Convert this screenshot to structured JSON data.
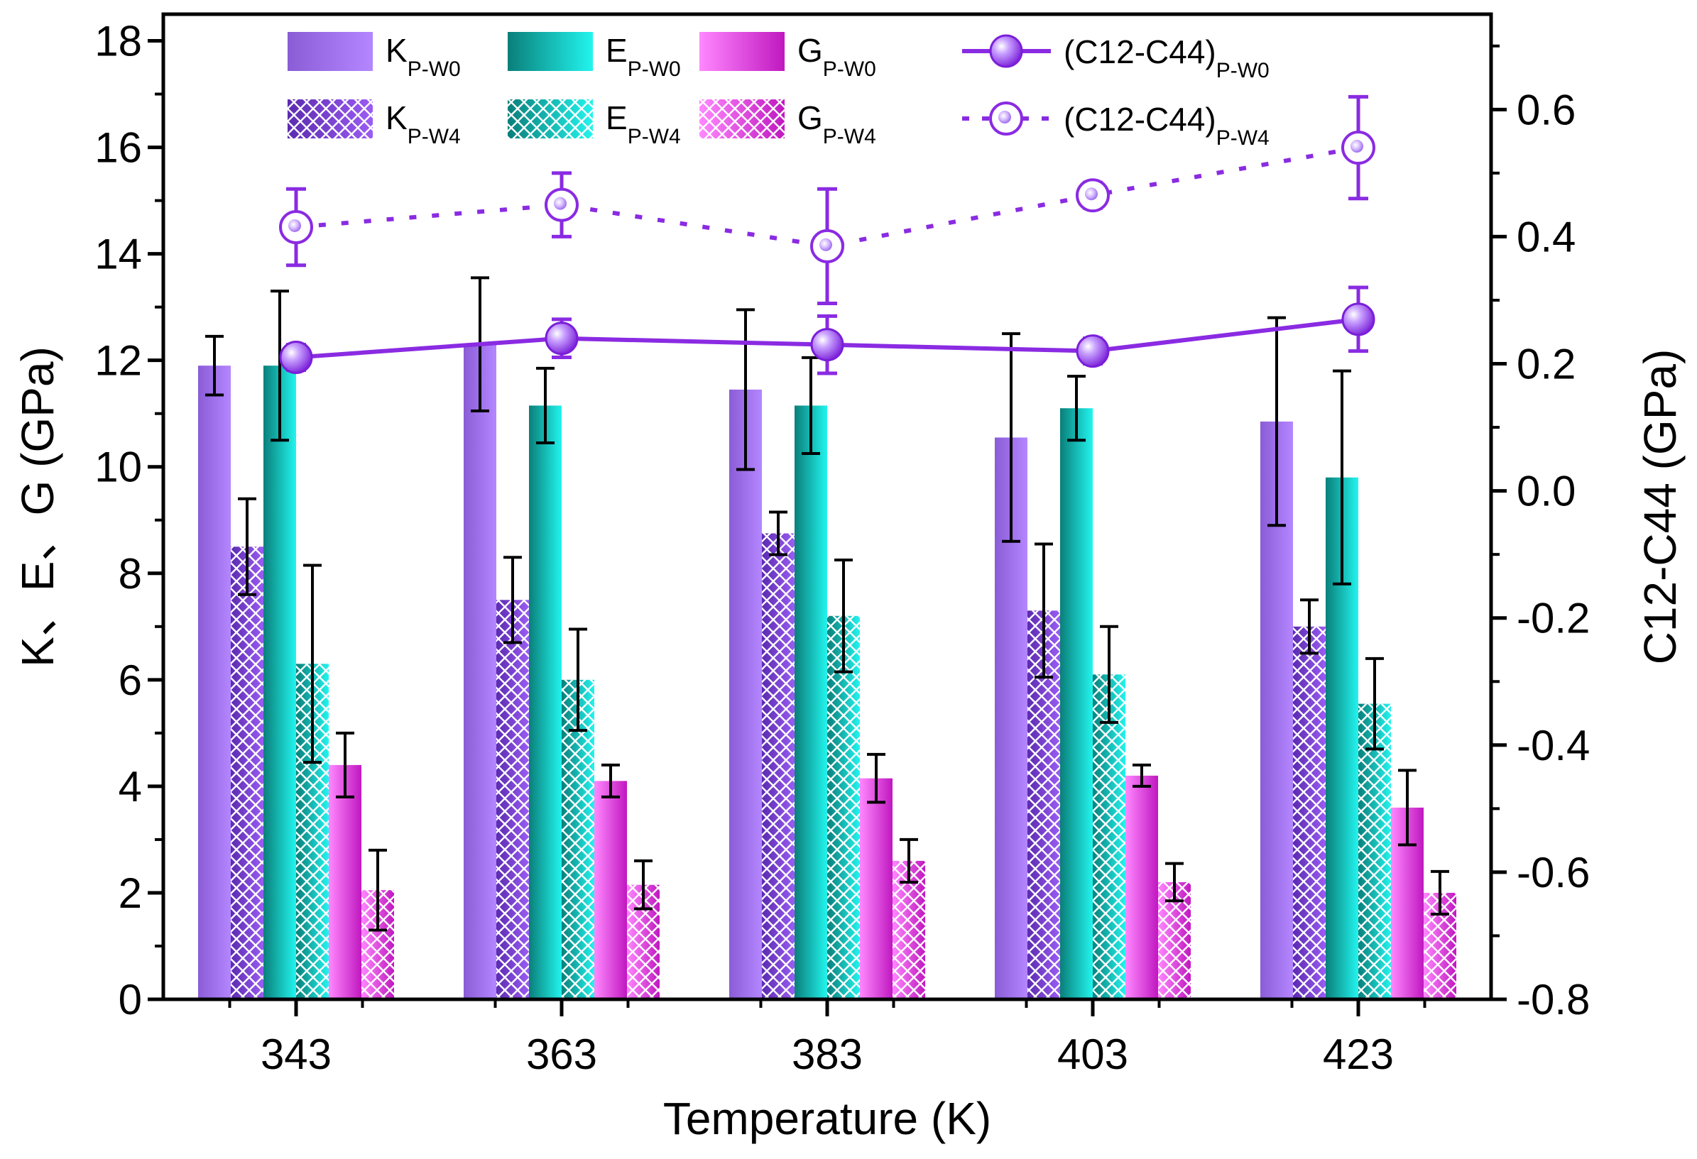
{
  "chart_data": {
    "type": "bar",
    "categories": [
      "343",
      "363",
      "383",
      "403",
      "423"
    ],
    "xlabel": "Temperature (K)",
    "ylabel": "K、E、G (GPa)",
    "y2label": "C12-C44 (GPa)",
    "ylim": [
      0,
      18.5
    ],
    "y2lim": [
      -0.8,
      0.75
    ],
    "yticks": [
      "0",
      "2",
      "4",
      "6",
      "8",
      "10",
      "12",
      "14",
      "16",
      "18"
    ],
    "y2ticks": [
      "-0.8",
      "-0.6",
      "-0.4",
      "-0.2",
      "0.0",
      "0.2",
      "0.4",
      "0.6"
    ],
    "bar_series": [
      {
        "name": "K",
        "sub": "P-W0",
        "color": "#9966ee",
        "pattern": "solid",
        "values": [
          11.9,
          12.3,
          11.45,
          10.55,
          10.85
        ],
        "errors": [
          0.55,
          1.25,
          1.5,
          1.95,
          1.95
        ]
      },
      {
        "name": "K",
        "sub": "P-W4",
        "color": "#7a3fd6",
        "pattern": "hatch",
        "values": [
          8.5,
          7.5,
          8.75,
          7.3,
          7.0
        ],
        "errors": [
          0.9,
          0.8,
          0.4,
          1.25,
          0.5
        ]
      },
      {
        "name": "E",
        "sub": "P-W0",
        "color": "#14c8c4",
        "pattern": "solid",
        "values": [
          11.9,
          11.15,
          11.15,
          11.1,
          9.8
        ],
        "errors": [
          1.4,
          0.7,
          0.9,
          0.6,
          2.0
        ]
      },
      {
        "name": "E",
        "sub": "P-W4",
        "color": "#14b5b0",
        "pattern": "hatch",
        "values": [
          6.3,
          6.0,
          7.2,
          6.1,
          5.55
        ],
        "errors": [
          1.85,
          0.95,
          1.05,
          0.9,
          0.85
        ]
      },
      {
        "name": "G",
        "sub": "P-W0",
        "color": "#dd33dd",
        "pattern": "solid",
        "values": [
          4.4,
          4.1,
          4.15,
          4.2,
          3.6
        ],
        "errors": [
          0.6,
          0.3,
          0.45,
          0.2,
          0.7
        ]
      },
      {
        "name": "G",
        "sub": "P-W4",
        "color": "#d83ed8",
        "pattern": "hatch",
        "values": [
          2.05,
          2.15,
          2.6,
          2.2,
          2.0
        ],
        "errors": [
          0.75,
          0.45,
          0.4,
          0.35,
          0.4
        ]
      }
    ],
    "line_series": [
      {
        "name": "(C12-C44)",
        "sub": "P-W0",
        "style": "solid",
        "marker": "filled",
        "color": "#8a2be2",
        "values": [
          0.21,
          0.24,
          0.23,
          0.22,
          0.27
        ],
        "errors": [
          0.02,
          0.03,
          0.045,
          0.02,
          0.05
        ]
      },
      {
        "name": "(C12-C44)",
        "sub": "P-W4",
        "style": "dotted",
        "marker": "open",
        "color": "#8a2be2",
        "values": [
          0.415,
          0.45,
          0.385,
          0.465,
          0.54
        ],
        "errors": [
          0.06,
          0.05,
          0.09,
          0.02,
          0.08
        ]
      }
    ],
    "legend_position": "top"
  }
}
